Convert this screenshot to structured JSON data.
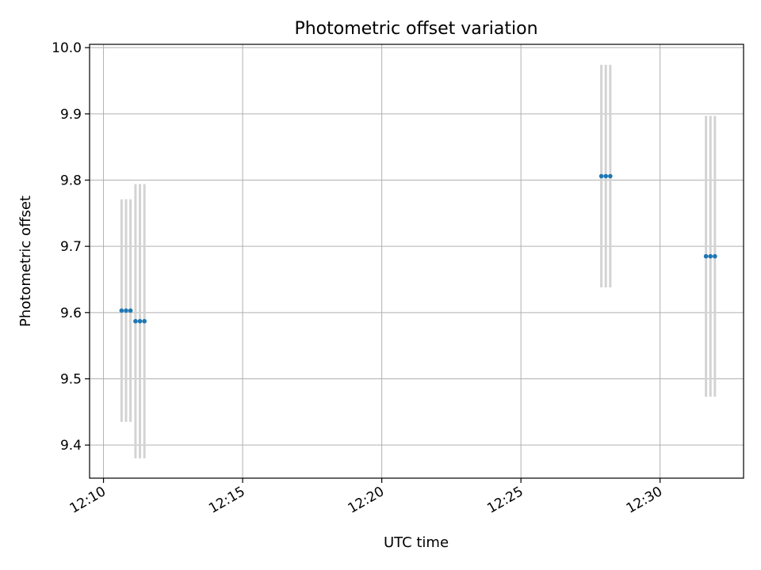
{
  "chart_data": {
    "type": "scatter",
    "title": "Photometric offset variation",
    "xlabel": "UTC time",
    "ylabel": "Photometric offset",
    "x_unit": "minutes",
    "xlim": [
      "12:09.5",
      "12:33.0"
    ],
    "ylim": [
      9.35,
      10.005
    ],
    "x_ticks": [
      "12:10",
      "12:15",
      "12:20",
      "12:25",
      "12:30"
    ],
    "y_ticks": [
      "9.4",
      "9.5",
      "9.6",
      "9.7",
      "9.8",
      "9.9",
      "10.0"
    ],
    "grid": true,
    "colors": {
      "points": "#1f77b4",
      "errorbars": "#d3d3d3",
      "grid": "#b0b0b0"
    },
    "points": [
      {
        "x": "12:10.65",
        "y": 9.603,
        "yerr": 0.168
      },
      {
        "x": "12:10.81",
        "y": 9.603,
        "yerr": 0.168
      },
      {
        "x": "12:10.97",
        "y": 9.603,
        "yerr": 0.168
      },
      {
        "x": "12:11.15",
        "y": 9.587,
        "yerr": 0.207
      },
      {
        "x": "12:11.31",
        "y": 9.587,
        "yerr": 0.207
      },
      {
        "x": "12:11.47",
        "y": 9.587,
        "yerr": 0.207
      },
      {
        "x": "12:27.89",
        "y": 9.806,
        "yerr": 0.168
      },
      {
        "x": "12:28.05",
        "y": 9.806,
        "yerr": 0.168
      },
      {
        "x": "12:28.21",
        "y": 9.806,
        "yerr": 0.168
      },
      {
        "x": "12:31.65",
        "y": 9.685,
        "yerr": 0.212
      },
      {
        "x": "12:31.81",
        "y": 9.685,
        "yerr": 0.212
      },
      {
        "x": "12:31.97",
        "y": 9.685,
        "yerr": 0.212
      }
    ]
  }
}
